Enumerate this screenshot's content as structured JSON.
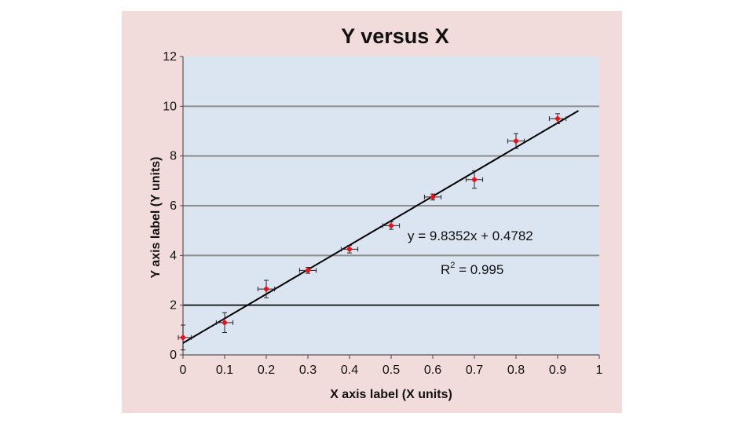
{
  "chart_data": {
    "type": "scatter",
    "title": "Y versus X",
    "xlabel": "X axis label (X units)",
    "ylabel": "Y axis label (Y units)",
    "xlim": [
      0,
      1
    ],
    "ylim": [
      0,
      12
    ],
    "x_ticks": [
      "0",
      "0.1",
      "0.2",
      "0.3",
      "0.4",
      "0.5",
      "0.6",
      "0.7",
      "0.8",
      "0.9",
      "1"
    ],
    "y_ticks": [
      "0",
      "2",
      "4",
      "6",
      "8",
      "10",
      "12"
    ],
    "grid": "horizontal",
    "colors": {
      "frame_background": "#f2dcdb",
      "plot_background": "#dbe5f1",
      "gridline": "#8c8c8c",
      "marker": "#e8141a",
      "line": "#000000"
    },
    "series": [
      {
        "points": [
          {
            "x": 0.0,
            "y": 0.7,
            "x_err": 0.02,
            "y_err": 0.5
          },
          {
            "x": 0.1,
            "y": 1.3,
            "x_err": 0.02,
            "y_err": 0.4
          },
          {
            "x": 0.2,
            "y": 2.65,
            "x_err": 0.02,
            "y_err": 0.35
          },
          {
            "x": 0.3,
            "y": 3.4,
            "x_err": 0.02,
            "y_err": 0.12
          },
          {
            "x": 0.4,
            "y": 4.25,
            "x_err": 0.02,
            "y_err": 0.15
          },
          {
            "x": 0.5,
            "y": 5.2,
            "x_err": 0.02,
            "y_err": 0.15
          },
          {
            "x": 0.6,
            "y": 6.35,
            "x_err": 0.02,
            "y_err": 0.12
          },
          {
            "x": 0.7,
            "y": 7.05,
            "x_err": 0.02,
            "y_err": 0.35
          },
          {
            "x": 0.8,
            "y": 8.6,
            "x_err": 0.02,
            "y_err": 0.3
          },
          {
            "x": 0.9,
            "y": 9.5,
            "x_err": 0.02,
            "y_err": 0.2
          }
        ]
      }
    ],
    "trendline": {
      "type": "linear",
      "slope": 9.8352,
      "intercept": 0.4782,
      "x_range": [
        0,
        0.95
      ],
      "equation_label": "y = 9.8352x + 0.4782",
      "r2_label_prefix": "R",
      "r2_label_superscript": "2",
      "r2_label_value": " = 0.995"
    }
  }
}
